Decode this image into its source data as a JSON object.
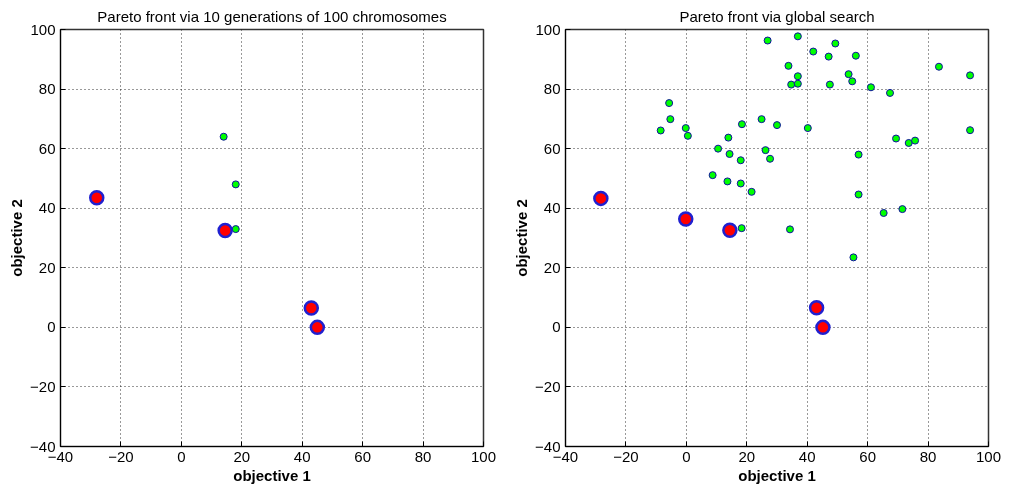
{
  "chart_data": [
    {
      "type": "scatter",
      "title": "Pareto front via 10 generations of 100 chromosomes",
      "xlabel": "objective 1",
      "ylabel": "objective 2",
      "xlim": [
        -40,
        100
      ],
      "ylim": [
        -40,
        100
      ],
      "xticks": [
        -40,
        -20,
        0,
        20,
        40,
        60,
        80,
        100
      ],
      "yticks": [
        -40,
        -20,
        0,
        20,
        40,
        60,
        80,
        100
      ],
      "grid": true,
      "marker": "circle",
      "series": [
        {
          "color": "#00ff00",
          "x": [
            14,
            18,
            18
          ],
          "values": [
            64,
            48,
            33
          ]
        },
        {
          "color": "#ff0000",
          "x": [
            -28,
            14.5,
            43,
            45
          ],
          "values": [
            43.5,
            32.5,
            6.5,
            0
          ]
        }
      ]
    },
    {
      "type": "scatter",
      "title": "Pareto front via global search",
      "xlabel": "objective 1",
      "ylabel": "objective 2",
      "xlim": [
        -40,
        100
      ],
      "ylim": [
        -40,
        100
      ],
      "xticks": [
        -40,
        -20,
        0,
        20,
        40,
        60,
        80,
        100
      ],
      "yticks": [
        -40,
        -20,
        0,
        20,
        40,
        60,
        80,
        100
      ],
      "grid": true,
      "marker": "circle",
      "series": [
        {
          "color": "#00ff00",
          "x": [
            -5.7,
            -5.3,
            -8.5,
            -0.2,
            0.5,
            10.5,
            13.9,
            14.3,
            18.4,
            18.0,
            8.7,
            13.6,
            18.0,
            21.6,
            24.9,
            26.2,
            27.7,
            26.9,
            36.9,
            42.0,
            49.3,
            47.1,
            56.1,
            33.8,
            36.9,
            34.7,
            36.9,
            47.5,
            53.7,
            54.9,
            61.1,
            67.4,
            83.6,
            93.9,
            30.0,
            40.2,
            69.4,
            73.6,
            75.7,
            93.9,
            57.0,
            57.0,
            65.3,
            71.5,
            18.3,
            34.3,
            55.3
          ],
          "values": [
            75.3,
            69.9,
            66.1,
            66.9,
            64.3,
            60,
            63.7,
            58.2,
            68.2,
            56.1,
            51.1,
            49,
            48.3,
            45.5,
            69.9,
            59.5,
            56.6,
            96.3,
            97.7,
            92.6,
            95.3,
            90.9,
            91.2,
            87.8,
            84.3,
            81.5,
            81.8,
            81.5,
            85.0,
            82.6,
            80.6,
            78.7,
            87.5,
            84.6,
            67.9,
            66.9,
            63.4,
            61.9,
            62.7,
            66.2,
            58.0,
            44.6,
            38.4,
            39.7,
            33.3,
            32.9,
            23.5
          ]
        },
        {
          "color": "#ff0000",
          "x": [
            -28.3,
            -0.2,
            14.4,
            43.1,
            45.2
          ],
          "values": [
            43.3,
            36.4,
            32.6,
            6.6,
            0
          ]
        }
      ]
    }
  ]
}
